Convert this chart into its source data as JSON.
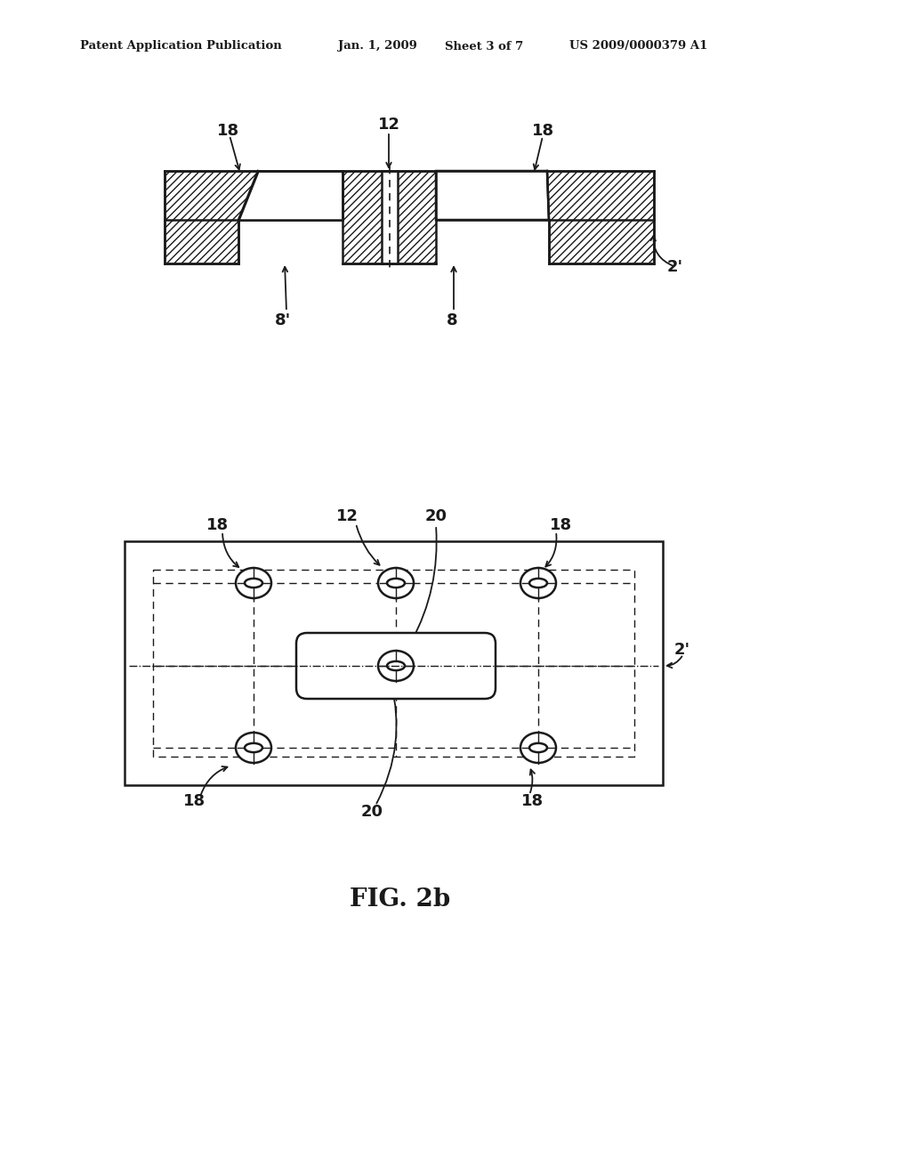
{
  "bg_color": "#ffffff",
  "header_text1": "Patent Application Publication",
  "header_text2": "Jan. 1, 2009",
  "header_text3": "Sheet 3 of 7",
  "header_text4": "US 2009/0000379 A1",
  "fig_label": "FIG. 2b"
}
